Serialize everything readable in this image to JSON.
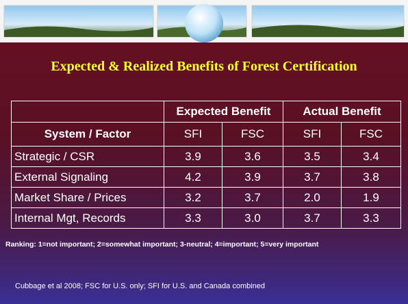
{
  "title": "Expected & Realized Benefits of Forest Certification",
  "table": {
    "group_headers": [
      "Expected Benefit",
      "Actual Benefit"
    ],
    "columns": [
      "System / Factor",
      "SFI",
      "FSC",
      "SFI",
      "FSC"
    ],
    "rows": [
      [
        "Strategic / CSR",
        "3.9",
        "3.6",
        "3.5",
        "3.4"
      ],
      [
        "External Signaling",
        "4.2",
        "3.9",
        "3.7",
        "3.8"
      ],
      [
        "Market Share / Prices",
        "3.2",
        "3.7",
        "2.0",
        "1.9"
      ],
      [
        "Internal Mgt, Records",
        "3.3",
        "3.0",
        "3.7",
        "3.3"
      ]
    ]
  },
  "notes": [
    "Ranking: 1=not important; 2=somewhat important; 3-neutral; 4=important; 5=very important",
    "Cubbage et al 2008; FSC for U.S. only; SFI for U.S. and Canada combined"
  ]
}
